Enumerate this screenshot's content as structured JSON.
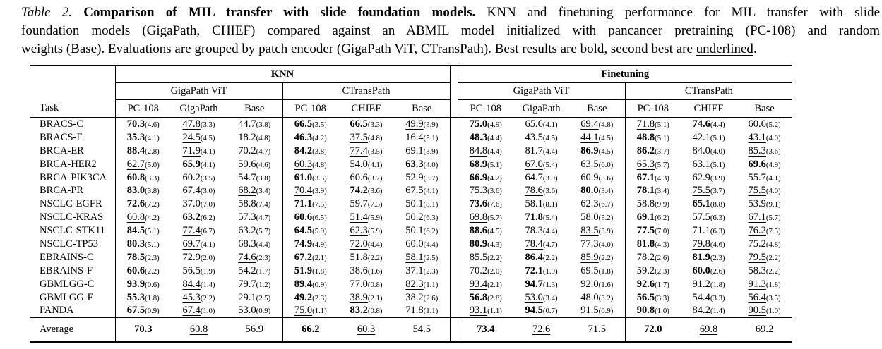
{
  "caption": {
    "label": "Table 2.",
    "title": "Comparison of MIL transfer with slide foundation models.",
    "line1_rest": "KNN and finetuning performance for MIL transfer with slide",
    "line2": "foundation models (GigaPath, CHIEF) compared against an ABMIL model initialized with pancancer pretraining (PC-108) and random",
    "line3_pre": "weights (Base). Evaluations are grouped by patch encoder (GigaPath ViT, CTransPath). Best results are bold, second best are ",
    "underlined_word": "underlined",
    "line3_end": "."
  },
  "table": {
    "group_headers": [
      "KNN",
      "Finetuning"
    ],
    "subgroups": [
      "GigaPath ViT",
      "CTransPath",
      "GigaPath ViT",
      "CTransPath"
    ],
    "task_header": "Task",
    "col_headers": [
      "PC-108",
      "GigaPath",
      "Base",
      "PC-108",
      "CHIEF",
      "Base",
      "PC-108",
      "GigaPath",
      "Base",
      "PC-108",
      "CHIEF",
      "Base"
    ],
    "rows": [
      {
        "task": "BRACS-C",
        "cells": [
          [
            "70.3",
            "4.6",
            "b"
          ],
          [
            "47.8",
            "3.3",
            "u"
          ],
          [
            "44.7",
            "3.8",
            ""
          ],
          [
            "66.5",
            "3.5",
            "b"
          ],
          [
            "66.5",
            "3.3",
            "b"
          ],
          [
            "49.9",
            "3.9",
            "u"
          ],
          [
            "75.0",
            "4.9",
            "b"
          ],
          [
            "65.6",
            "4.1",
            ""
          ],
          [
            "69.4",
            "4.8",
            "u"
          ],
          [
            "71.8",
            "5.1",
            "u"
          ],
          [
            "74.6",
            "4.4",
            "b"
          ],
          [
            "60.6",
            "5.2",
            ""
          ]
        ]
      },
      {
        "task": "BRACS-F",
        "cells": [
          [
            "35.3",
            "4.1",
            "b"
          ],
          [
            "24.5",
            "4.5",
            "u"
          ],
          [
            "18.2",
            "4.8",
            ""
          ],
          [
            "46.3",
            "4.2",
            "b"
          ],
          [
            "37.5",
            "4.8",
            "u"
          ],
          [
            "16.4",
            "5.1",
            ""
          ],
          [
            "48.3",
            "4.4",
            "b"
          ],
          [
            "43.5",
            "4.5",
            ""
          ],
          [
            "44.1",
            "4.5",
            "u"
          ],
          [
            "48.8",
            "5.1",
            "b"
          ],
          [
            "42.1",
            "5.1",
            ""
          ],
          [
            "43.1",
            "4.0",
            "u"
          ]
        ]
      },
      {
        "task": "BRCA-ER",
        "cells": [
          [
            "88.4",
            "2.8",
            "b"
          ],
          [
            "71.9",
            "4.1",
            "u"
          ],
          [
            "70.2",
            "4.7",
            ""
          ],
          [
            "84.2",
            "3.8",
            "b"
          ],
          [
            "77.4",
            "3.5",
            "u"
          ],
          [
            "69.1",
            "3.9",
            ""
          ],
          [
            "84.8",
            "4.4",
            "u"
          ],
          [
            "81.7",
            "4.4",
            ""
          ],
          [
            "86.9",
            "4.5",
            "b"
          ],
          [
            "86.2",
            "3.7",
            "b"
          ],
          [
            "84.0",
            "4.0",
            ""
          ],
          [
            "85.3",
            "3.6",
            "u"
          ]
        ]
      },
      {
        "task": "BRCA-HER2",
        "cells": [
          [
            "62.7",
            "5.0",
            "u"
          ],
          [
            "65.9",
            "4.1",
            "b"
          ],
          [
            "59.6",
            "4.6",
            ""
          ],
          [
            "60.3",
            "4.8",
            "u"
          ],
          [
            "54.0",
            "4.1",
            ""
          ],
          [
            "63.3",
            "4.0",
            "b"
          ],
          [
            "68.9",
            "5.1",
            "b"
          ],
          [
            "67.0",
            "5.4",
            "u"
          ],
          [
            "63.5",
            "6.0",
            ""
          ],
          [
            "65.3",
            "5.7",
            "u"
          ],
          [
            "63.1",
            "5.1",
            ""
          ],
          [
            "69.6",
            "4.9",
            "b"
          ]
        ]
      },
      {
        "task": "BRCA-PIK3CA",
        "cells": [
          [
            "60.8",
            "3.3",
            "b"
          ],
          [
            "60.2",
            "3.5",
            "u"
          ],
          [
            "54.7",
            "3.8",
            ""
          ],
          [
            "61.0",
            "3.5",
            "b"
          ],
          [
            "60.6",
            "3.7",
            "u"
          ],
          [
            "52.9",
            "3.7",
            ""
          ],
          [
            "66.9",
            "4.2",
            "b"
          ],
          [
            "64.7",
            "3.9",
            "u"
          ],
          [
            "60.9",
            "3.6",
            ""
          ],
          [
            "67.1",
            "4.3",
            "b"
          ],
          [
            "62.9",
            "3.9",
            "u"
          ],
          [
            "55.7",
            "4.1",
            ""
          ]
        ]
      },
      {
        "task": "BRCA-PR",
        "cells": [
          [
            "83.0",
            "3.8",
            "b"
          ],
          [
            "67.4",
            "3.0",
            ""
          ],
          [
            "68.2",
            "3.4",
            "u"
          ],
          [
            "70.4",
            "3.9",
            "u"
          ],
          [
            "74.2",
            "3.6",
            "b"
          ],
          [
            "67.5",
            "4.1",
            ""
          ],
          [
            "75.3",
            "3.6",
            ""
          ],
          [
            "78.6",
            "3.6",
            "u"
          ],
          [
            "80.0",
            "3.4",
            "b"
          ],
          [
            "78.1",
            "3.4",
            "b"
          ],
          [
            "75.5",
            "3.7",
            "u"
          ],
          [
            "75.5",
            "4.0",
            "u"
          ]
        ]
      },
      {
        "task": "NSCLC-EGFR",
        "cells": [
          [
            "72.6",
            "7.2",
            "b"
          ],
          [
            "37.0",
            "7.0",
            ""
          ],
          [
            "58.8",
            "7.4",
            "u"
          ],
          [
            "71.1",
            "7.5",
            "b"
          ],
          [
            "59.7",
            "7.3",
            "u"
          ],
          [
            "50.1",
            "8.1",
            ""
          ],
          [
            "73.6",
            "7.6",
            "b"
          ],
          [
            "58.1",
            "8.1",
            ""
          ],
          [
            "62.3",
            "6.7",
            "u"
          ],
          [
            "58.8",
            "9.9",
            "u"
          ],
          [
            "65.1",
            "8.8",
            "b"
          ],
          [
            "53.9",
            "9.1",
            ""
          ]
        ]
      },
      {
        "task": "NSCLC-KRAS",
        "cells": [
          [
            "60.8",
            "4.2",
            "u"
          ],
          [
            "63.2",
            "6.2",
            "b"
          ],
          [
            "57.3",
            "4.7",
            ""
          ],
          [
            "60.6",
            "6.5",
            "b"
          ],
          [
            "51.4",
            "5.9",
            "u"
          ],
          [
            "50.2",
            "6.3",
            ""
          ],
          [
            "69.8",
            "5.7",
            "u"
          ],
          [
            "71.8",
            "5.4",
            "b"
          ],
          [
            "58.0",
            "5.2",
            ""
          ],
          [
            "69.1",
            "6.2",
            "b"
          ],
          [
            "57.5",
            "6.3",
            ""
          ],
          [
            "67.1",
            "5.7",
            "u"
          ]
        ]
      },
      {
        "task": "NSCLC-STK11",
        "cells": [
          [
            "84.5",
            "5.1",
            "b"
          ],
          [
            "77.4",
            "6.7",
            "u"
          ],
          [
            "63.2",
            "5.7",
            ""
          ],
          [
            "64.5",
            "5.9",
            "b"
          ],
          [
            "62.3",
            "5.9",
            "u"
          ],
          [
            "50.1",
            "6.2",
            ""
          ],
          [
            "88.6",
            "4.5",
            "b"
          ],
          [
            "78.3",
            "4.4",
            ""
          ],
          [
            "83.5",
            "3.9",
            "u"
          ],
          [
            "77.5",
            "7.0",
            "b"
          ],
          [
            "71.1",
            "6.3",
            ""
          ],
          [
            "76.2",
            "7.5",
            "u"
          ]
        ]
      },
      {
        "task": "NSCLC-TP53",
        "cells": [
          [
            "80.3",
            "5.1",
            "b"
          ],
          [
            "69.7",
            "4.1",
            "u"
          ],
          [
            "68.3",
            "4.4",
            ""
          ],
          [
            "74.9",
            "4.9",
            "b"
          ],
          [
            "72.0",
            "4.4",
            "u"
          ],
          [
            "60.0",
            "4.4",
            ""
          ],
          [
            "80.9",
            "4.3",
            "b"
          ],
          [
            "78.4",
            "4.7",
            "u"
          ],
          [
            "77.3",
            "4.0",
            ""
          ],
          [
            "81.8",
            "4.3",
            "b"
          ],
          [
            "79.8",
            "4.6",
            "u"
          ],
          [
            "75.2",
            "4.8",
            ""
          ]
        ]
      },
      {
        "task": "EBRAINS-C",
        "cells": [
          [
            "78.5",
            "2.3",
            "b"
          ],
          [
            "72.9",
            "2.0",
            ""
          ],
          [
            "74.6",
            "2.3",
            "u"
          ],
          [
            "67.2",
            "2.1",
            "b"
          ],
          [
            "51.8",
            "2.2",
            ""
          ],
          [
            "58.1",
            "2.5",
            "u"
          ],
          [
            "85.5",
            "2.2",
            ""
          ],
          [
            "86.4",
            "2.2",
            "b"
          ],
          [
            "85.9",
            "2.2",
            "u"
          ],
          [
            "78.2",
            "2.6",
            ""
          ],
          [
            "81.9",
            "2.3",
            "b"
          ],
          [
            "79.5",
            "2.2",
            "u"
          ]
        ]
      },
      {
        "task": "EBRAINS-F",
        "cells": [
          [
            "60.6",
            "2.2",
            "b"
          ],
          [
            "56.5",
            "1.9",
            "u"
          ],
          [
            "54.2",
            "1.7",
            ""
          ],
          [
            "51.9",
            "1.8",
            "b"
          ],
          [
            "38.6",
            "1.6",
            "u"
          ],
          [
            "37.1",
            "2.3",
            ""
          ],
          [
            "70.2",
            "2.0",
            "u"
          ],
          [
            "72.1",
            "1.9",
            "b"
          ],
          [
            "69.5",
            "1.8",
            ""
          ],
          [
            "59.2",
            "2.3",
            "u"
          ],
          [
            "60.0",
            "2.6",
            "b"
          ],
          [
            "58.3",
            "2.2",
            ""
          ]
        ]
      },
      {
        "task": "GBMLGG-C",
        "cells": [
          [
            "93.9",
            "0.6",
            "b"
          ],
          [
            "84.4",
            "1.4",
            "u"
          ],
          [
            "79.7",
            "1.2",
            ""
          ],
          [
            "89.4",
            "0.9",
            "b"
          ],
          [
            "77.0",
            "0.8",
            ""
          ],
          [
            "82.3",
            "1.1",
            "u"
          ],
          [
            "93.4",
            "2.1",
            "u"
          ],
          [
            "94.7",
            "1.3",
            "b"
          ],
          [
            "92.0",
            "1.6",
            ""
          ],
          [
            "92.6",
            "1.7",
            "b"
          ],
          [
            "91.2",
            "1.8",
            ""
          ],
          [
            "91.3",
            "1.8",
            "u"
          ]
        ]
      },
      {
        "task": "GBMLGG-F",
        "cells": [
          [
            "55.3",
            "1.8",
            "b"
          ],
          [
            "45.3",
            "2.2",
            "u"
          ],
          [
            "29.1",
            "2.5",
            ""
          ],
          [
            "49.2",
            "2.3",
            "b"
          ],
          [
            "38.9",
            "2.1",
            "u"
          ],
          [
            "38.2",
            "2.6",
            ""
          ],
          [
            "56.8",
            "2.8",
            "b"
          ],
          [
            "53.0",
            "3.4",
            "u"
          ],
          [
            "48.0",
            "3.2",
            ""
          ],
          [
            "56.5",
            "3.3",
            "b"
          ],
          [
            "54.4",
            "3.3",
            ""
          ],
          [
            "56.4",
            "3.5",
            "u"
          ]
        ]
      },
      {
        "task": "PANDA",
        "cells": [
          [
            "67.5",
            "0.9",
            "b"
          ],
          [
            "67.4",
            "1.0",
            "u"
          ],
          [
            "53.0",
            "0.9",
            ""
          ],
          [
            "75.0",
            "1.1",
            "u"
          ],
          [
            "83.2",
            "0.8",
            "b"
          ],
          [
            "71.8",
            "1.1",
            ""
          ],
          [
            "93.1",
            "1.1",
            "u"
          ],
          [
            "94.5",
            "0.7",
            "b"
          ],
          [
            "91.5",
            "0.9",
            ""
          ],
          [
            "90.8",
            "1.0",
            "b"
          ],
          [
            "84.2",
            "1.4",
            ""
          ],
          [
            "90.5",
            "1.0",
            "u"
          ]
        ]
      }
    ],
    "average": {
      "label": "Average",
      "cells": [
        [
          "70.3",
          "b"
        ],
        [
          "60.8",
          "u"
        ],
        [
          "56.9",
          ""
        ],
        [
          "66.2",
          "b"
        ],
        [
          "60.3",
          "u"
        ],
        [
          "54.5",
          ""
        ],
        [
          "73.4",
          "b"
        ],
        [
          "72.6",
          "u"
        ],
        [
          "71.5",
          ""
        ],
        [
          "72.0",
          "b"
        ],
        [
          "69.8",
          "u"
        ],
        [
          "69.2",
          ""
        ]
      ]
    }
  }
}
